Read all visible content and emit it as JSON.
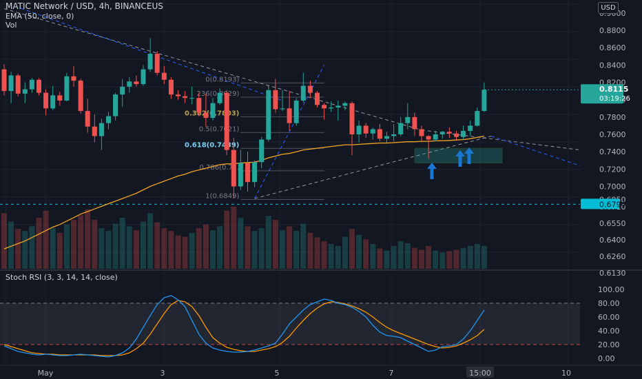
{
  "header": {
    "title": "MATIC Network / USD, 4h, BINANCEUS",
    "ema_label": "EMA (50, close, 0)",
    "vol_label": "Vol",
    "currency": "USD"
  },
  "price_axis": {
    "ticks": [
      "0.9000",
      "0.8800",
      "0.8600",
      "0.8400",
      "0.8200",
      "0.8000",
      "0.7800",
      "0.7600",
      "0.7400",
      "0.7200",
      "0.7000",
      "0.6850",
      "0.6710",
      "0.6550",
      "0.6400",
      "0.6260",
      "0.6130"
    ]
  },
  "current_price": {
    "value": "0.8115",
    "countdown": "03:19:26",
    "color": "#26a69a"
  },
  "level_label": {
    "value": "0.6794",
    "color": "#00bcd4"
  },
  "fib_labels": [
    "0(0.8193)",
    "236(0.8029)",
    "0.382(0.7803)",
    "0.5(0.7621)",
    "0.618(0.7439)",
    "0.786(0.7...",
    "1(0.6849)"
  ],
  "rsi": {
    "title": "Stoch RSI (3, 3, 14, 14, close)",
    "ticks": [
      "100.00",
      "80.00",
      "60.00",
      "40.00",
      "20.00",
      "0.00"
    ],
    "k_color": "#2196f3",
    "d_color": "#ff9800"
  },
  "time_axis": {
    "labels": [
      "May",
      "3",
      "5",
      "7",
      "15:00",
      "10"
    ]
  },
  "colors": {
    "up": "#26a69a",
    "down": "#ef5350",
    "ema": "#f5a623",
    "background": "#131722"
  },
  "chart_data": {
    "type": "candlestick",
    "ylim": [
      0.605,
      0.915
    ],
    "candles": [
      [
        0.835,
        0.841,
        0.805,
        0.81
      ],
      [
        0.81,
        0.832,
        0.796,
        0.828
      ],
      [
        0.828,
        0.83,
        0.804,
        0.807
      ],
      [
        0.807,
        0.82,
        0.796,
        0.812
      ],
      [
        0.812,
        0.825,
        0.808,
        0.823
      ],
      [
        0.823,
        0.825,
        0.805,
        0.808
      ],
      [
        0.808,
        0.812,
        0.782,
        0.79
      ],
      [
        0.79,
        0.816,
        0.788,
        0.805
      ],
      [
        0.805,
        0.809,
        0.793,
        0.799
      ],
      [
        0.799,
        0.831,
        0.798,
        0.827
      ],
      [
        0.827,
        0.839,
        0.815,
        0.822
      ],
      [
        0.822,
        0.824,
        0.784,
        0.787
      ],
      [
        0.787,
        0.801,
        0.762,
        0.769
      ],
      [
        0.769,
        0.783,
        0.751,
        0.758
      ],
      [
        0.758,
        0.778,
        0.742,
        0.773
      ],
      [
        0.773,
        0.786,
        0.766,
        0.781
      ],
      [
        0.781,
        0.808,
        0.776,
        0.806
      ],
      [
        0.806,
        0.824,
        0.792,
        0.815
      ],
      [
        0.815,
        0.826,
        0.808,
        0.821
      ],
      [
        0.821,
        0.828,
        0.815,
        0.818
      ],
      [
        0.818,
        0.84,
        0.816,
        0.835
      ],
      [
        0.835,
        0.871,
        0.832,
        0.853
      ],
      [
        0.853,
        0.856,
        0.828,
        0.831
      ],
      [
        0.831,
        0.839,
        0.818,
        0.823
      ],
      [
        0.823,
        0.826,
        0.801,
        0.806
      ],
      [
        0.806,
        0.811,
        0.8,
        0.804
      ],
      [
        0.804,
        0.81,
        0.796,
        0.802
      ],
      [
        0.802,
        0.815,
        0.795,
        0.802
      ],
      [
        0.802,
        0.808,
        0.781,
        0.785
      ],
      [
        0.785,
        0.807,
        0.769,
        0.779
      ],
      [
        0.779,
        0.802,
        0.776,
        0.796
      ],
      [
        0.796,
        0.813,
        0.794,
        0.808
      ],
      [
        0.808,
        0.811,
        0.736,
        0.742
      ],
      [
        0.742,
        0.756,
        0.686,
        0.7
      ],
      [
        0.7,
        0.742,
        0.696,
        0.727
      ],
      [
        0.727,
        0.74,
        0.694,
        0.705
      ],
      [
        0.705,
        0.73,
        0.699,
        0.728
      ],
      [
        0.728,
        0.757,
        0.721,
        0.754
      ],
      [
        0.754,
        0.816,
        0.752,
        0.811
      ],
      [
        0.811,
        0.824,
        0.785,
        0.789
      ],
      [
        0.789,
        0.811,
        0.787,
        0.79
      ],
      [
        0.79,
        0.81,
        0.764,
        0.773
      ],
      [
        0.773,
        0.802,
        0.77,
        0.799
      ],
      [
        0.799,
        0.831,
        0.797,
        0.816
      ],
      [
        0.816,
        0.822,
        0.802,
        0.808
      ],
      [
        0.808,
        0.81,
        0.791,
        0.794
      ],
      [
        0.794,
        0.796,
        0.777,
        0.79
      ],
      [
        0.79,
        0.798,
        0.786,
        0.791
      ],
      [
        0.791,
        0.799,
        0.776,
        0.793
      ],
      [
        0.793,
        0.798,
        0.788,
        0.796
      ],
      [
        0.796,
        0.798,
        0.736,
        0.76
      ],
      [
        0.76,
        0.776,
        0.751,
        0.77
      ],
      [
        0.77,
        0.773,
        0.756,
        0.761
      ],
      [
        0.761,
        0.768,
        0.754,
        0.766
      ],
      [
        0.766,
        0.772,
        0.752,
        0.755
      ],
      [
        0.755,
        0.763,
        0.75,
        0.758
      ],
      [
        0.758,
        0.772,
        0.752,
        0.76
      ],
      [
        0.76,
        0.78,
        0.758,
        0.773
      ],
      [
        0.773,
        0.796,
        0.766,
        0.78
      ],
      [
        0.78,
        0.785,
        0.758,
        0.766
      ],
      [
        0.766,
        0.77,
        0.751,
        0.758
      ],
      [
        0.758,
        0.759,
        0.732,
        0.754
      ],
      [
        0.754,
        0.764,
        0.752,
        0.76
      ],
      [
        0.76,
        0.764,
        0.755,
        0.763
      ],
      [
        0.763,
        0.768,
        0.756,
        0.761
      ],
      [
        0.761,
        0.764,
        0.753,
        0.757
      ],
      [
        0.757,
        0.77,
        0.754,
        0.764
      ],
      [
        0.764,
        0.776,
        0.758,
        0.77
      ],
      [
        0.77,
        0.791,
        0.769,
        0.787
      ],
      [
        0.787,
        0.82,
        0.786,
        0.8115
      ]
    ],
    "volume": [
      8.5,
      7.2,
      6.1,
      5.8,
      6.5,
      7.8,
      8.9,
      6.2,
      5.5,
      6.8,
      7.5,
      8.2,
      9.1,
      7.5,
      6.2,
      5.8,
      6.9,
      7.8,
      6.5,
      5.9,
      7.2,
      8.5,
      7.1,
      6.2,
      5.8,
      5.1,
      4.9,
      5.5,
      6.2,
      6.8,
      5.9,
      6.5,
      8.9,
      9.5,
      7.8,
      6.5,
      5.8,
      6.2,
      8.1,
      7.5,
      5.9,
      6.5,
      5.8,
      6.9,
      5.5,
      4.8,
      4.2,
      3.8,
      3.5,
      4.9,
      6.1,
      5.2,
      4.5,
      3.8,
      3.1,
      2.8,
      3.5,
      4.2,
      3.9,
      3.2,
      2.9,
      3.5,
      2.8,
      2.5,
      2.7,
      2.9,
      3.2,
      3.5,
      3.8,
      3.5
    ],
    "ema": [
      0.628,
      0.631,
      0.634,
      0.637,
      0.641,
      0.645,
      0.649,
      0.653,
      0.656,
      0.66,
      0.664,
      0.668,
      0.671,
      0.674,
      0.677,
      0.68,
      0.683,
      0.686,
      0.689,
      0.692,
      0.696,
      0.7,
      0.703,
      0.706,
      0.709,
      0.712,
      0.714,
      0.717,
      0.719,
      0.721,
      0.723,
      0.725,
      0.726,
      0.726,
      0.727,
      0.7275,
      0.728,
      0.73,
      0.733,
      0.735,
      0.737,
      0.738,
      0.74,
      0.742,
      0.743,
      0.744,
      0.745,
      0.746,
      0.747,
      0.748,
      0.748,
      0.7485,
      0.749,
      0.7495,
      0.75,
      0.75,
      0.7505,
      0.751,
      0.7515,
      0.7515,
      0.752,
      0.752,
      0.7525,
      0.7528,
      0.753,
      0.7535,
      0.754,
      0.755,
      0.7565,
      0.758
    ],
    "stoch_k": [
      18,
      14,
      10,
      8,
      6,
      5,
      6,
      5,
      4,
      4,
      5,
      6,
      5,
      4,
      3,
      2,
      4,
      8,
      15,
      28,
      45,
      62,
      78,
      88,
      91,
      85,
      75,
      55,
      35,
      22,
      15,
      12,
      10,
      9,
      9,
      10,
      12,
      15,
      18,
      22,
      35,
      50,
      60,
      70,
      78,
      82,
      86,
      84,
      80,
      78,
      74,
      68,
      60,
      48,
      38,
      33,
      32,
      30,
      25,
      20,
      15,
      10,
      12,
      17,
      18,
      20,
      28,
      40,
      55,
      70
    ],
    "stoch_d": [
      20,
      17,
      14,
      11,
      8,
      7,
      6,
      6,
      5,
      5,
      5,
      5,
      5,
      5,
      4,
      4,
      4,
      5,
      8,
      14,
      22,
      35,
      50,
      65,
      78,
      84,
      82,
      75,
      62,
      45,
      30,
      22,
      16,
      13,
      11,
      10,
      10,
      12,
      14,
      17,
      23,
      32,
      44,
      55,
      65,
      73,
      79,
      82,
      81,
      79,
      76,
      72,
      67,
      60,
      52,
      45,
      40,
      36,
      32,
      28,
      24,
      20,
      17,
      15,
      16,
      18,
      22,
      27,
      33,
      42
    ],
    "trendlines": [
      {
        "from": [
          0,
          0.905
        ],
        "to": [
          60,
          0.765
        ]
      },
      {
        "from": [
          36,
          0.686
        ],
        "to": [
          70,
          0.758
        ]
      }
    ],
    "fib_levels": [
      0.8193,
      0.8029,
      0.7803,
      0.7621,
      0.7439,
      0.718,
      0.6849
    ],
    "support_zone": [
      0.727,
      0.744
    ],
    "level_line": 0.6794
  }
}
